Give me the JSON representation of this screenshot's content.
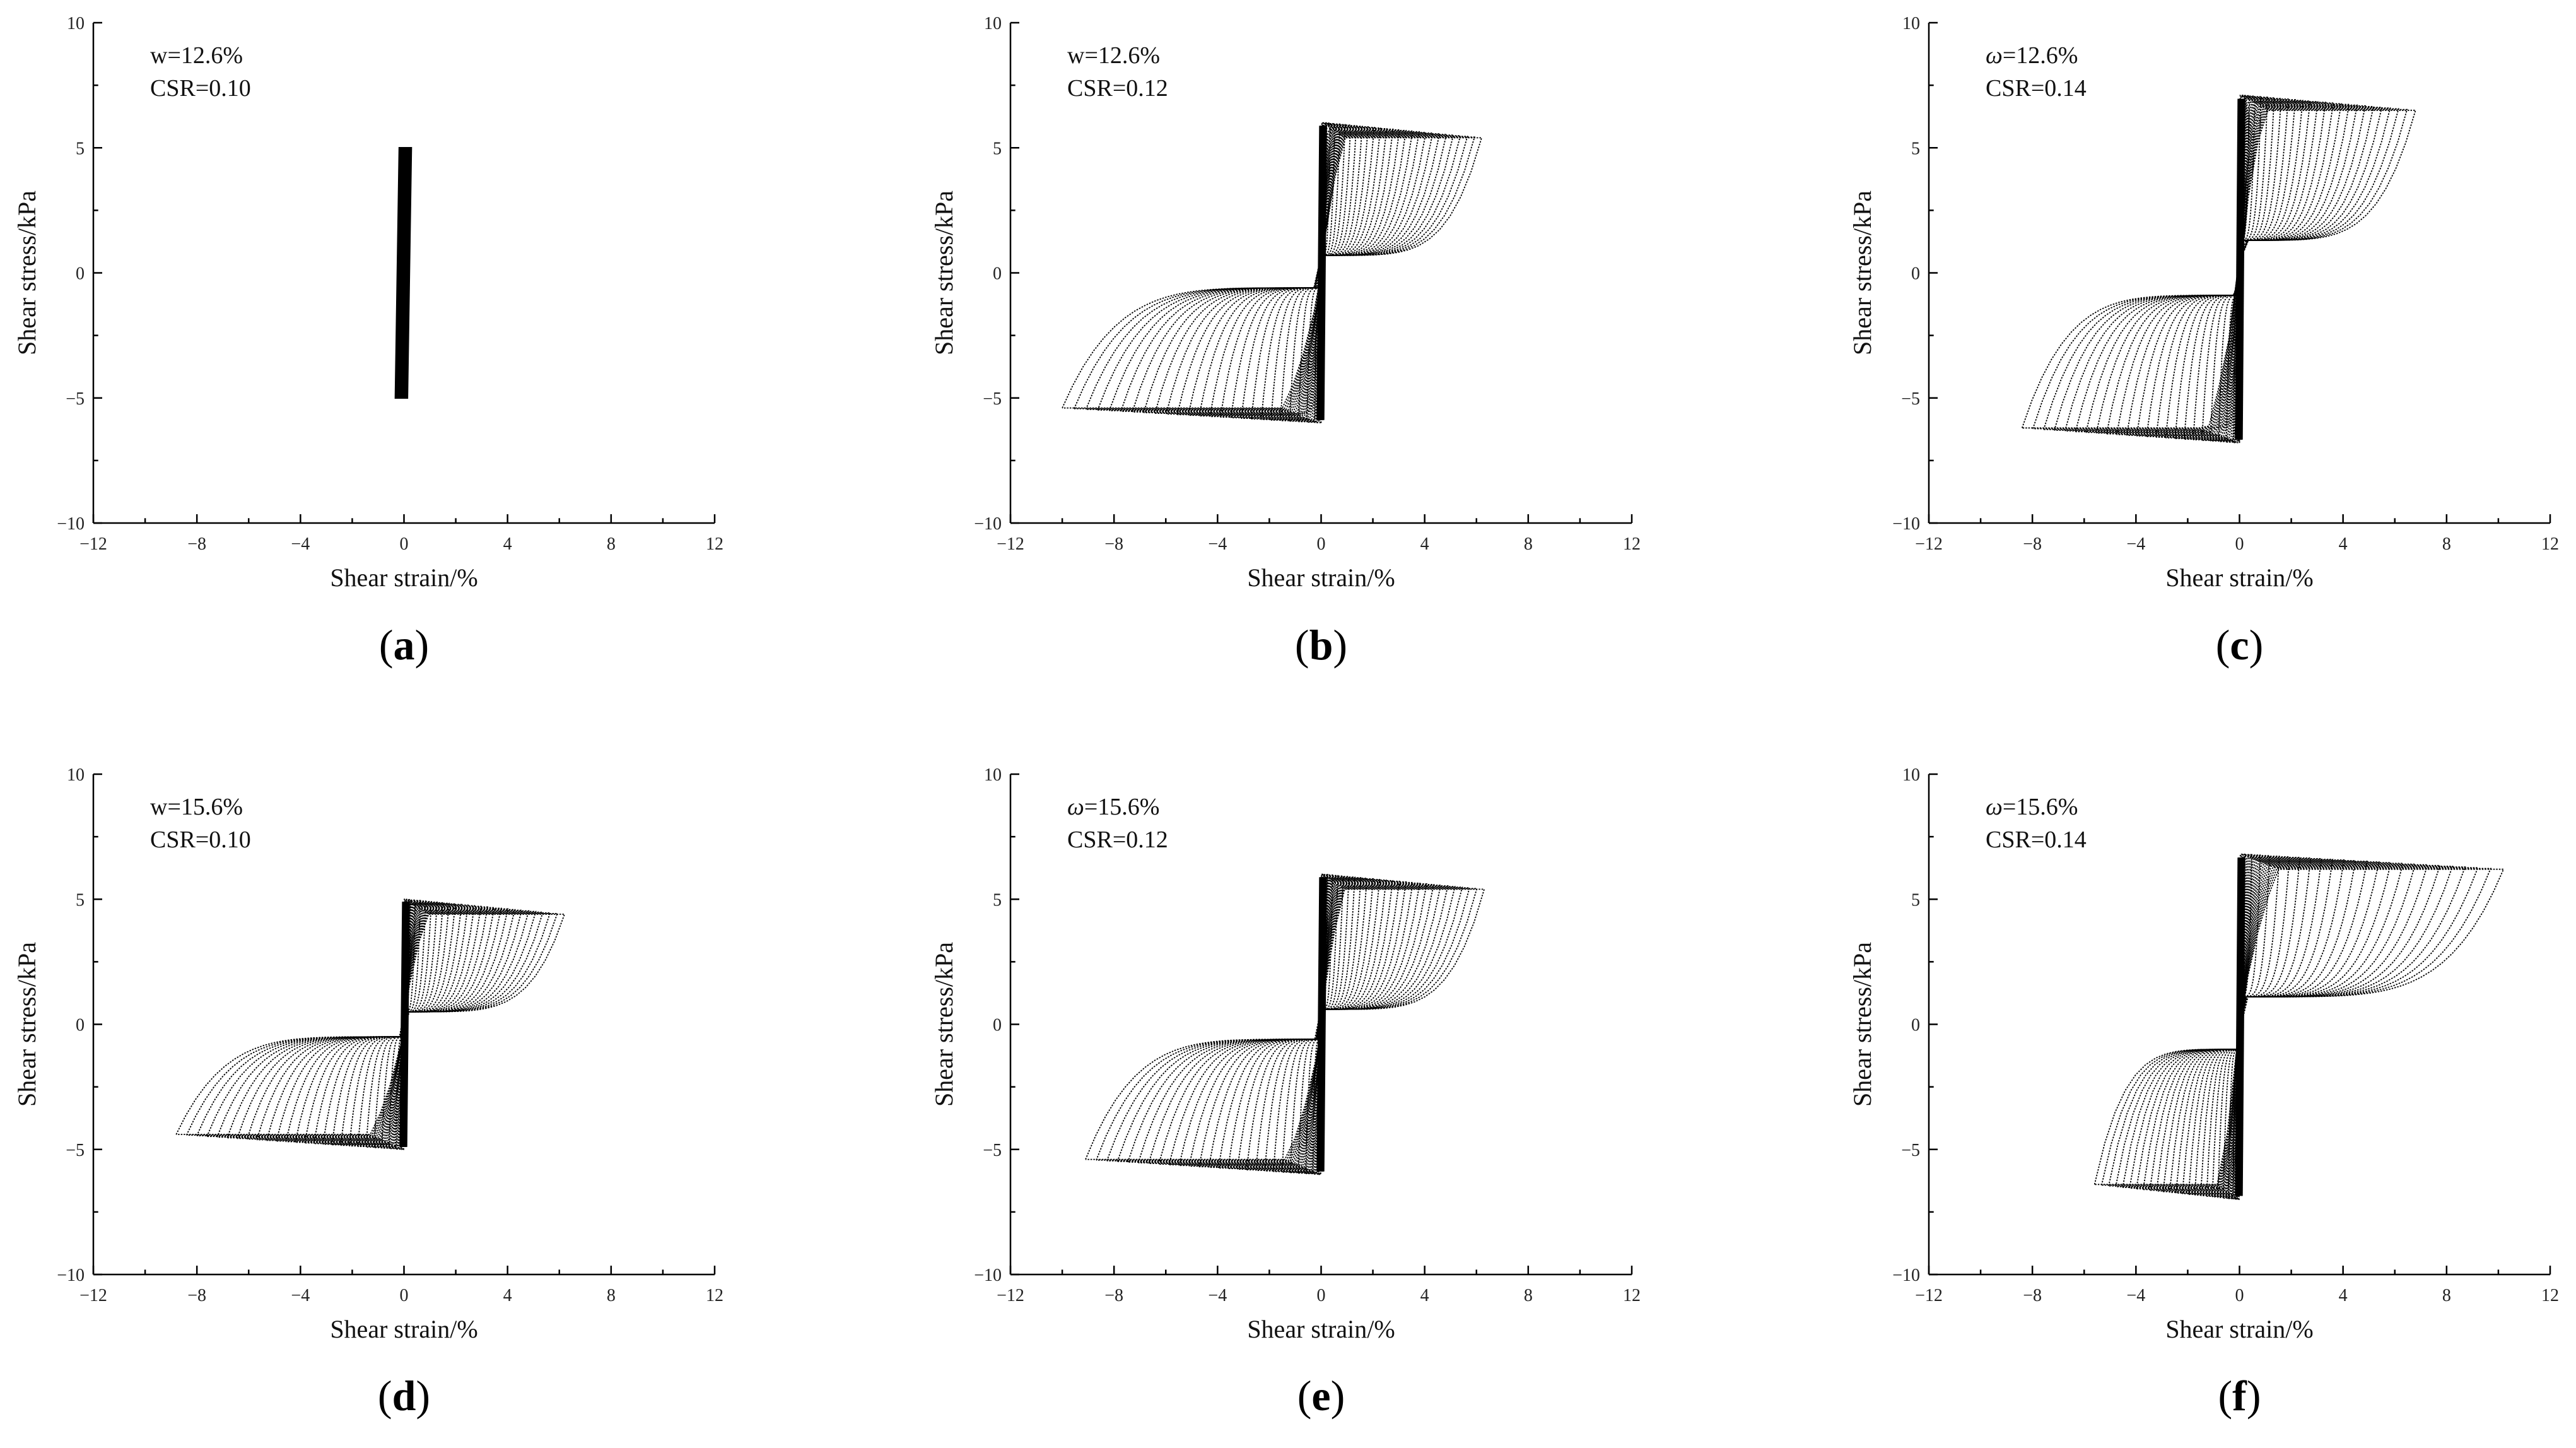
{
  "chart_data": [
    {
      "panel_label": "a",
      "type": "line",
      "xlabel": "Shear strain/%",
      "ylabel": "Shear stress/kPa",
      "xlim": [
        -12,
        12
      ],
      "ylim": [
        -10,
        10
      ],
      "xticks": [
        "−12",
        "−8",
        "−4",
        "0",
        "4",
        "8",
        "12"
      ],
      "yticks": [
        "−10",
        "−5",
        "0",
        "5",
        "10"
      ],
      "annotation_line1": "w=12.6%",
      "annotation_line2": "CSR=0.10",
      "loop": {
        "cycles": 20,
        "tau_min": -5.0,
        "tau_max": 5.0,
        "neg_left": -0.3,
        "neg_right": 0.1,
        "pos_left": -0.15,
        "pos_right": 0.25,
        "lower_plateau": 0,
        "upper_plateau": 0,
        "shape": "compact"
      },
      "color": "#000000"
    },
    {
      "panel_label": "b",
      "type": "line",
      "xlabel": "Shear strain/%",
      "ylabel": "Shear stress/kPa",
      "xlim": [
        -12,
        12
      ],
      "ylim": [
        -10,
        10
      ],
      "xticks": [
        "−12",
        "−8",
        "−4",
        "0",
        "4",
        "8",
        "12"
      ],
      "yticks": [
        "−10",
        "−5",
        "0",
        "5",
        "10"
      ],
      "annotation_line1": "w=12.6%",
      "annotation_line2": "CSR=0.12",
      "loop": {
        "cycles": 26,
        "tau_min": -6.0,
        "tau_max": 6.0,
        "neg_left": -10.0,
        "neg_right": 0.0,
        "pos_left": 0.2,
        "pos_right": 6.2,
        "lower_plateau": 0.6,
        "upper_plateau": 0.7,
        "shape": "growing"
      },
      "color": "#000000"
    },
    {
      "panel_label": "c",
      "type": "line",
      "xlabel": "Shear strain/%",
      "ylabel": "Shear stress/kPa",
      "xlim": [
        -12,
        12
      ],
      "ylim": [
        -10,
        10
      ],
      "xticks": [
        "−12",
        "−8",
        "−4",
        "0",
        "4",
        "8",
        "12"
      ],
      "yticks": [
        "−10",
        "−5",
        "0",
        "5",
        "10"
      ],
      "annotation_line1": "ω=12.6%",
      "annotation_line2": "CSR=0.14",
      "loop": {
        "cycles": 24,
        "tau_min": -6.8,
        "tau_max": 7.1,
        "neg_left": -8.4,
        "neg_right": 0.0,
        "pos_left": 0.2,
        "pos_right": 6.8,
        "lower_plateau": 0.9,
        "upper_plateau": 1.3,
        "shape": "growing"
      },
      "color": "#000000"
    },
    {
      "panel_label": "d",
      "type": "line",
      "xlabel": "Shear strain/%",
      "ylabel": "Shear stress/kPa",
      "xlim": [
        -12,
        12
      ],
      "ylim": [
        -10,
        10
      ],
      "xticks": [
        "−12",
        "−8",
        "−4",
        "0",
        "4",
        "8",
        "12"
      ],
      "yticks": [
        "−10",
        "−5",
        "0",
        "5",
        "10"
      ],
      "annotation_line1": "w=15.6%",
      "annotation_line2": "CSR=0.10",
      "loop": {
        "cycles": 26,
        "tau_min": -5.0,
        "tau_max": 5.0,
        "neg_left": -8.8,
        "neg_right": -0.1,
        "pos_left": 0.1,
        "pos_right": 6.2,
        "lower_plateau": 0.5,
        "upper_plateau": 0.5,
        "shape": "growing"
      },
      "color": "#000000"
    },
    {
      "panel_label": "e",
      "type": "line",
      "xlabel": "Shear strain/%",
      "ylabel": "Shear stress/kPa",
      "xlim": [
        -12,
        12
      ],
      "ylim": [
        -10,
        10
      ],
      "xticks": [
        "−12",
        "−8",
        "−4",
        "0",
        "4",
        "8",
        "12"
      ],
      "yticks": [
        "−10",
        "−5",
        "0",
        "5",
        "10"
      ],
      "annotation_line1": "ω=15.6%",
      "annotation_line2": "CSR=0.12",
      "loop": {
        "cycles": 26,
        "tau_min": -6.0,
        "tau_max": 6.0,
        "neg_left": -9.1,
        "neg_right": -0.1,
        "pos_left": 0.1,
        "pos_right": 6.3,
        "lower_plateau": 0.6,
        "upper_plateau": 0.6,
        "shape": "growing"
      },
      "color": "#000000"
    },
    {
      "panel_label": "f",
      "type": "line",
      "xlabel": "Shear strain/%",
      "ylabel": "Shear stress/kPa",
      "xlim": [
        -12,
        12
      ],
      "ylim": [
        -10,
        10
      ],
      "xticks": [
        "−12",
        "−8",
        "−4",
        "0",
        "4",
        "8",
        "12"
      ],
      "yticks": [
        "−10",
        "−5",
        "0",
        "5",
        "10"
      ],
      "annotation_line1": "ω=15.6%",
      "annotation_line2": "CSR=0.14",
      "loop": {
        "cycles": 24,
        "tau_min": -7.0,
        "tau_max": 6.8,
        "neg_left": -5.6,
        "neg_right": -0.1,
        "pos_left": 0.2,
        "pos_right": 10.2,
        "lower_plateau": 1.0,
        "upper_plateau": 1.1,
        "shape": "growing"
      },
      "color": "#000000"
    }
  ]
}
